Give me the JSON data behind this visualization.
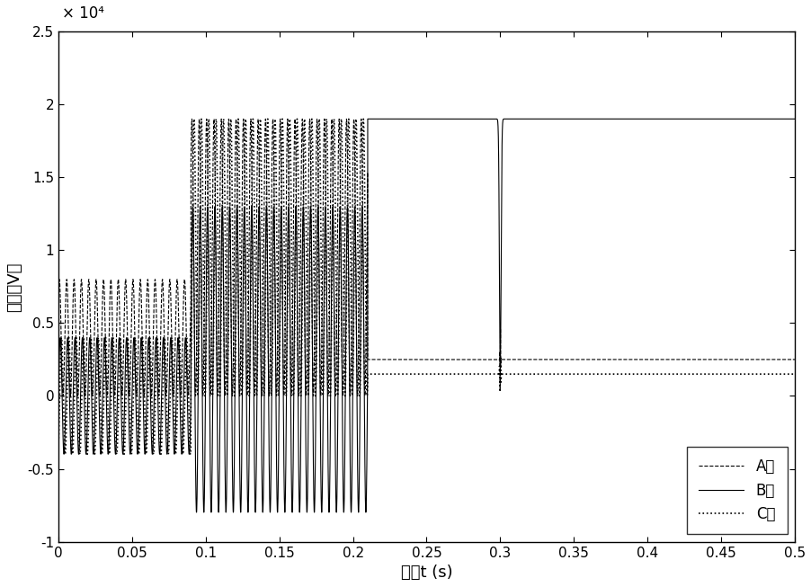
{
  "title": "",
  "xlabel": "时间t (s)",
  "ylabel": "电压（V）",
  "xlim": [
    0,
    0.5
  ],
  "ylim": [
    -10000,
    25000
  ],
  "yticks": [
    -10000,
    -5000,
    0,
    5000,
    10000,
    15000,
    20000,
    25000
  ],
  "ytick_labels": [
    "-1",
    "-0.5",
    "0",
    "0.5",
    "1",
    "1.5",
    "2",
    "2.5"
  ],
  "xticks": [
    0,
    0.05,
    0.1,
    0.15,
    0.2,
    0.25,
    0.3,
    0.35,
    0.4,
    0.45,
    0.5
  ],
  "xtick_labels": [
    "0",
    "0.05",
    "0.1",
    "0.15",
    "0.2",
    "0.25",
    "0.3",
    "0.35",
    "0.4",
    "0.45",
    "0.5"
  ],
  "scale_text": "× 10⁴",
  "t_switch1": 0.09,
  "t_switch2": 0.21,
  "t_fault": 0.3,
  "A_dc_after2": 2500,
  "B_dc_after2": 19000,
  "C_dc_after2": 1500,
  "A_amp_before": 4000,
  "A_mean_before": 4000,
  "B_amp_before": 4000,
  "B_mean_before": 0,
  "C_amp_before": 4000,
  "C_mean_before": 0,
  "A_amp_mid": 9500,
  "A_mean_mid": 9500,
  "B_amp_mid": 10500,
  "B_mean_mid": 2500,
  "C_amp_mid": 9500,
  "C_mean_mid": 9500,
  "freq": 200,
  "legend_labels": [
    "A相",
    "B相",
    "C相"
  ],
  "line_color": "#000000",
  "bg_color": "#ffffff",
  "font_size": 13,
  "legend_fontsize": 12
}
